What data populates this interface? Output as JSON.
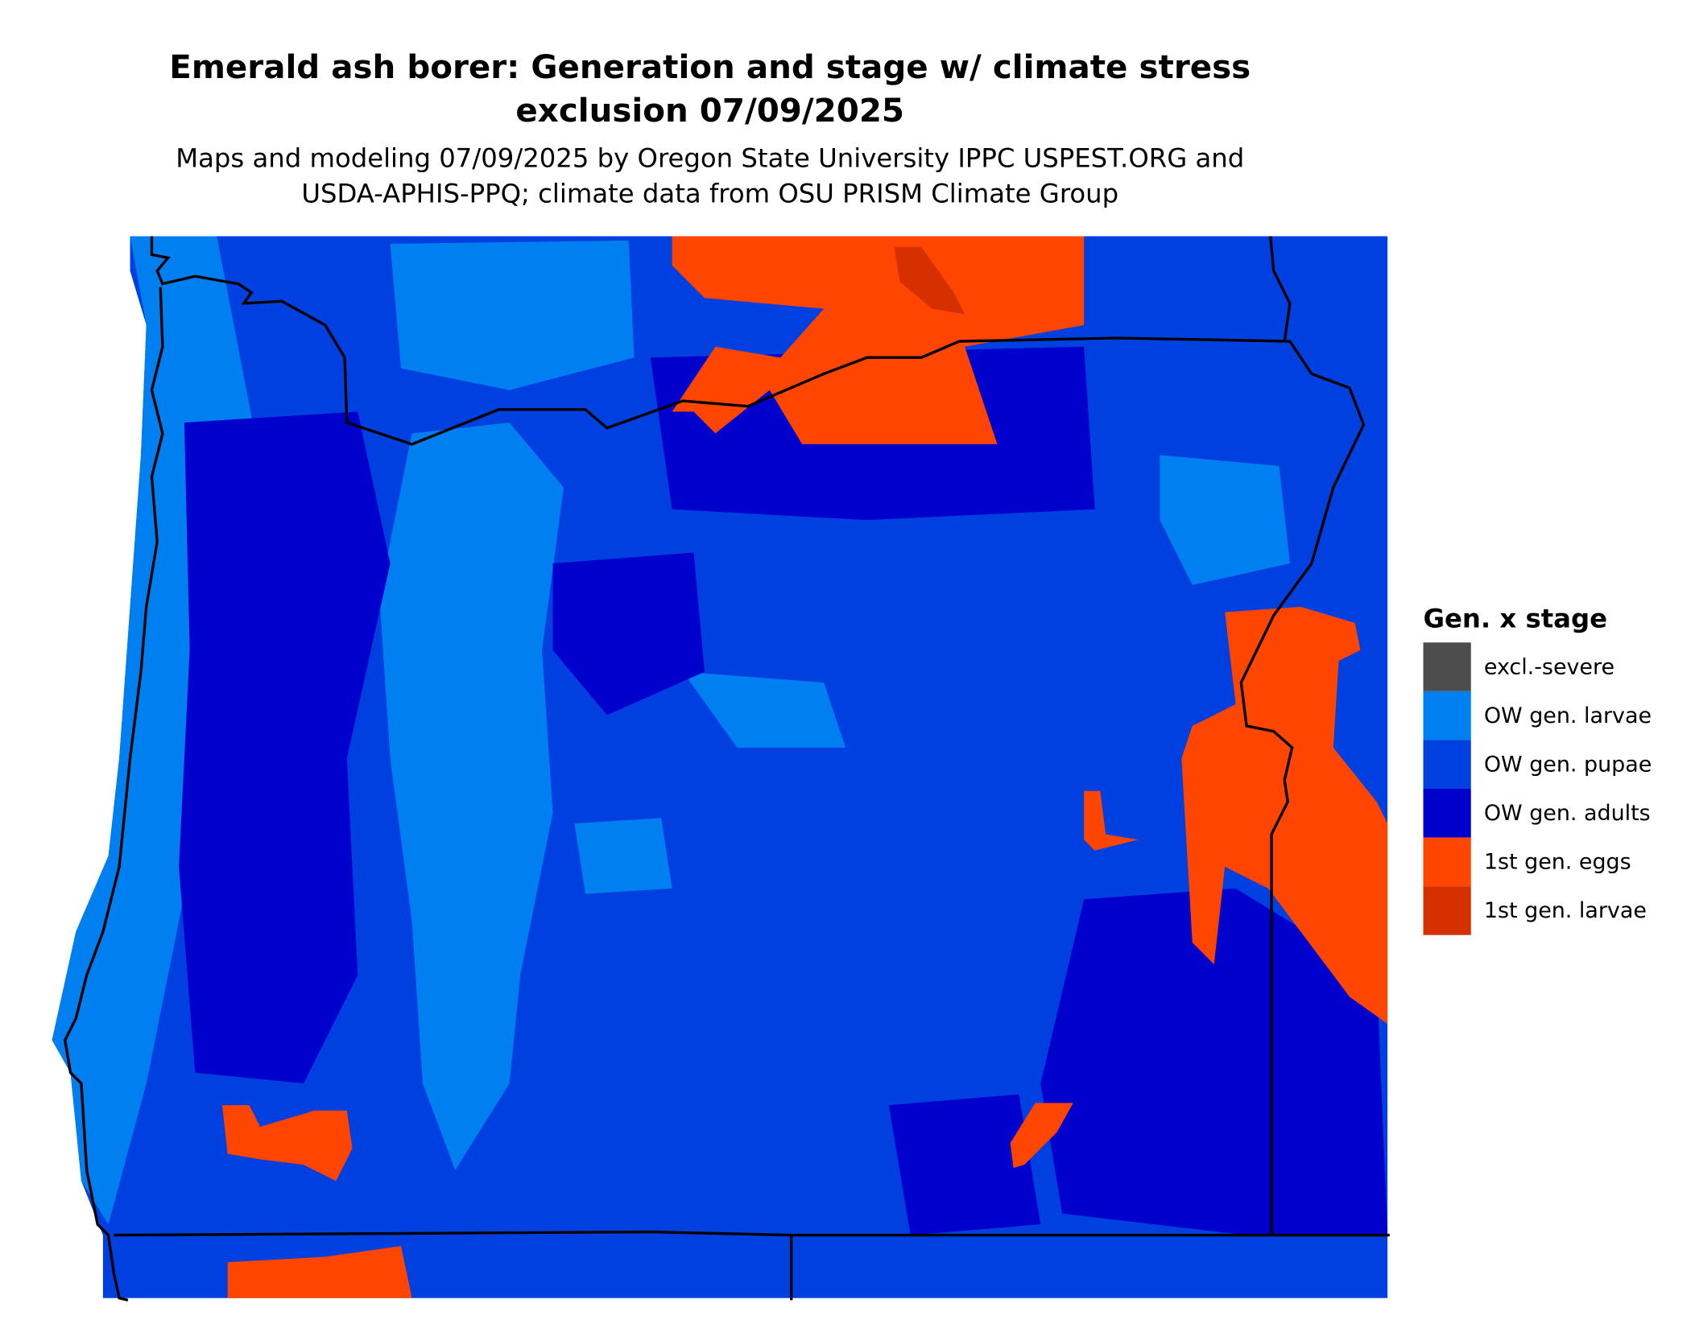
{
  "title": [
    "Emerald ash borer: Generation and stage w/ climate stress",
    "exclusion 07/09/2025"
  ],
  "subtitle": [
    "Maps and modeling 07/09/2025 by Oregon State University IPPC USPEST.ORG and",
    "USDA-APHIS-PPQ; climate data from OSU PRISM Climate Group"
  ],
  "legend": {
    "title": "Gen. x stage",
    "items": [
      {
        "label": "excl.-severe",
        "color": "#4d4d4d"
      },
      {
        "label": "OW gen. larvae",
        "color": "#0080f0"
      },
      {
        "label": "OW gen. pupae",
        "color": "#0040e0"
      },
      {
        "label": "OW gen. adults",
        "color": "#0000cd"
      },
      {
        "label": "1st gen. eggs",
        "color": "#ff4500"
      },
      {
        "label": "1st gen. larvae",
        "color": "#d63000"
      }
    ]
  }
}
